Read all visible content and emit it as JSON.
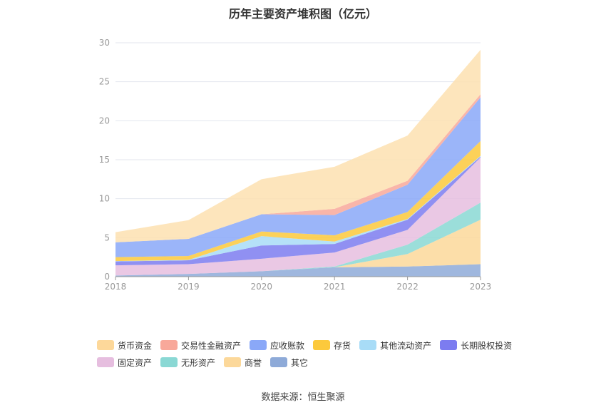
{
  "chart_data": {
    "type": "area",
    "stacked": true,
    "title": "历年主要资产堆积图（亿元）",
    "x": [
      "2018",
      "2019",
      "2020",
      "2021",
      "2022",
      "2023"
    ],
    "ylim": [
      0,
      30
    ],
    "yticks": [
      0,
      5,
      10,
      15,
      20,
      25,
      30
    ],
    "grid": true,
    "legend_position": "bottom",
    "series": [
      {
        "name": "其它",
        "color": "#8eaad8",
        "values": [
          0.15,
          0.35,
          0.7,
          1.2,
          1.3,
          1.6
        ]
      },
      {
        "name": "商誉",
        "color": "#fcd89a",
        "values": [
          0,
          0,
          0,
          0,
          1.6,
          5.7
        ]
      },
      {
        "name": "无形资产",
        "color": "#8ad8d4",
        "values": [
          0,
          0,
          0,
          0.1,
          1.2,
          2.2
        ]
      },
      {
        "name": "固定资产",
        "color": "#e6bedf",
        "values": [
          1.3,
          1.25,
          1.6,
          1.8,
          1.9,
          5.8
        ]
      },
      {
        "name": "长期股权投资",
        "color": "#7c7cf0",
        "values": [
          0.5,
          0.5,
          1.7,
          1.1,
          1.3,
          0.1
        ]
      },
      {
        "name": "其他流动资产",
        "color": "#a8dcf7",
        "values": [
          0.05,
          0.05,
          1.2,
          0.3,
          0.1,
          0.1
        ]
      },
      {
        "name": "存货",
        "color": "#fcc93c",
        "values": [
          0.5,
          0.5,
          0.6,
          0.8,
          0.9,
          1.9
        ]
      },
      {
        "name": "应收账款",
        "color": "#8aa8f8",
        "values": [
          1.9,
          2.2,
          2.2,
          2.6,
          3.5,
          5.6
        ]
      },
      {
        "name": "交易性金融资产",
        "color": "#f8a89a",
        "values": [
          0,
          0,
          0,
          0.8,
          0.5,
          0.4
        ]
      },
      {
        "name": "货币资金",
        "color": "#fde0b0",
        "values": [
          1.3,
          2.4,
          4.5,
          5.4,
          5.8,
          5.7
        ]
      }
    ]
  },
  "legend_rows": [
    [
      {
        "name": "货币资金",
        "color": "#fdd89a"
      },
      {
        "name": "交易性金融资产",
        "color": "#f8a89a"
      },
      {
        "name": "应收账款",
        "color": "#8aa8f8"
      },
      {
        "name": "存货",
        "color": "#fcc93c"
      },
      {
        "name": "其他流动资产",
        "color": "#a8dcf7"
      },
      {
        "name": "长期股权投资",
        "color": "#7c7cf0"
      }
    ],
    [
      {
        "name": "固定资产",
        "color": "#e6bedf"
      },
      {
        "name": "无形资产",
        "color": "#8ad8d4"
      },
      {
        "name": "商誉",
        "color": "#fcd89a"
      },
      {
        "name": "其它",
        "color": "#8eaad8"
      }
    ]
  ],
  "source": "数据来源：恒生聚源"
}
